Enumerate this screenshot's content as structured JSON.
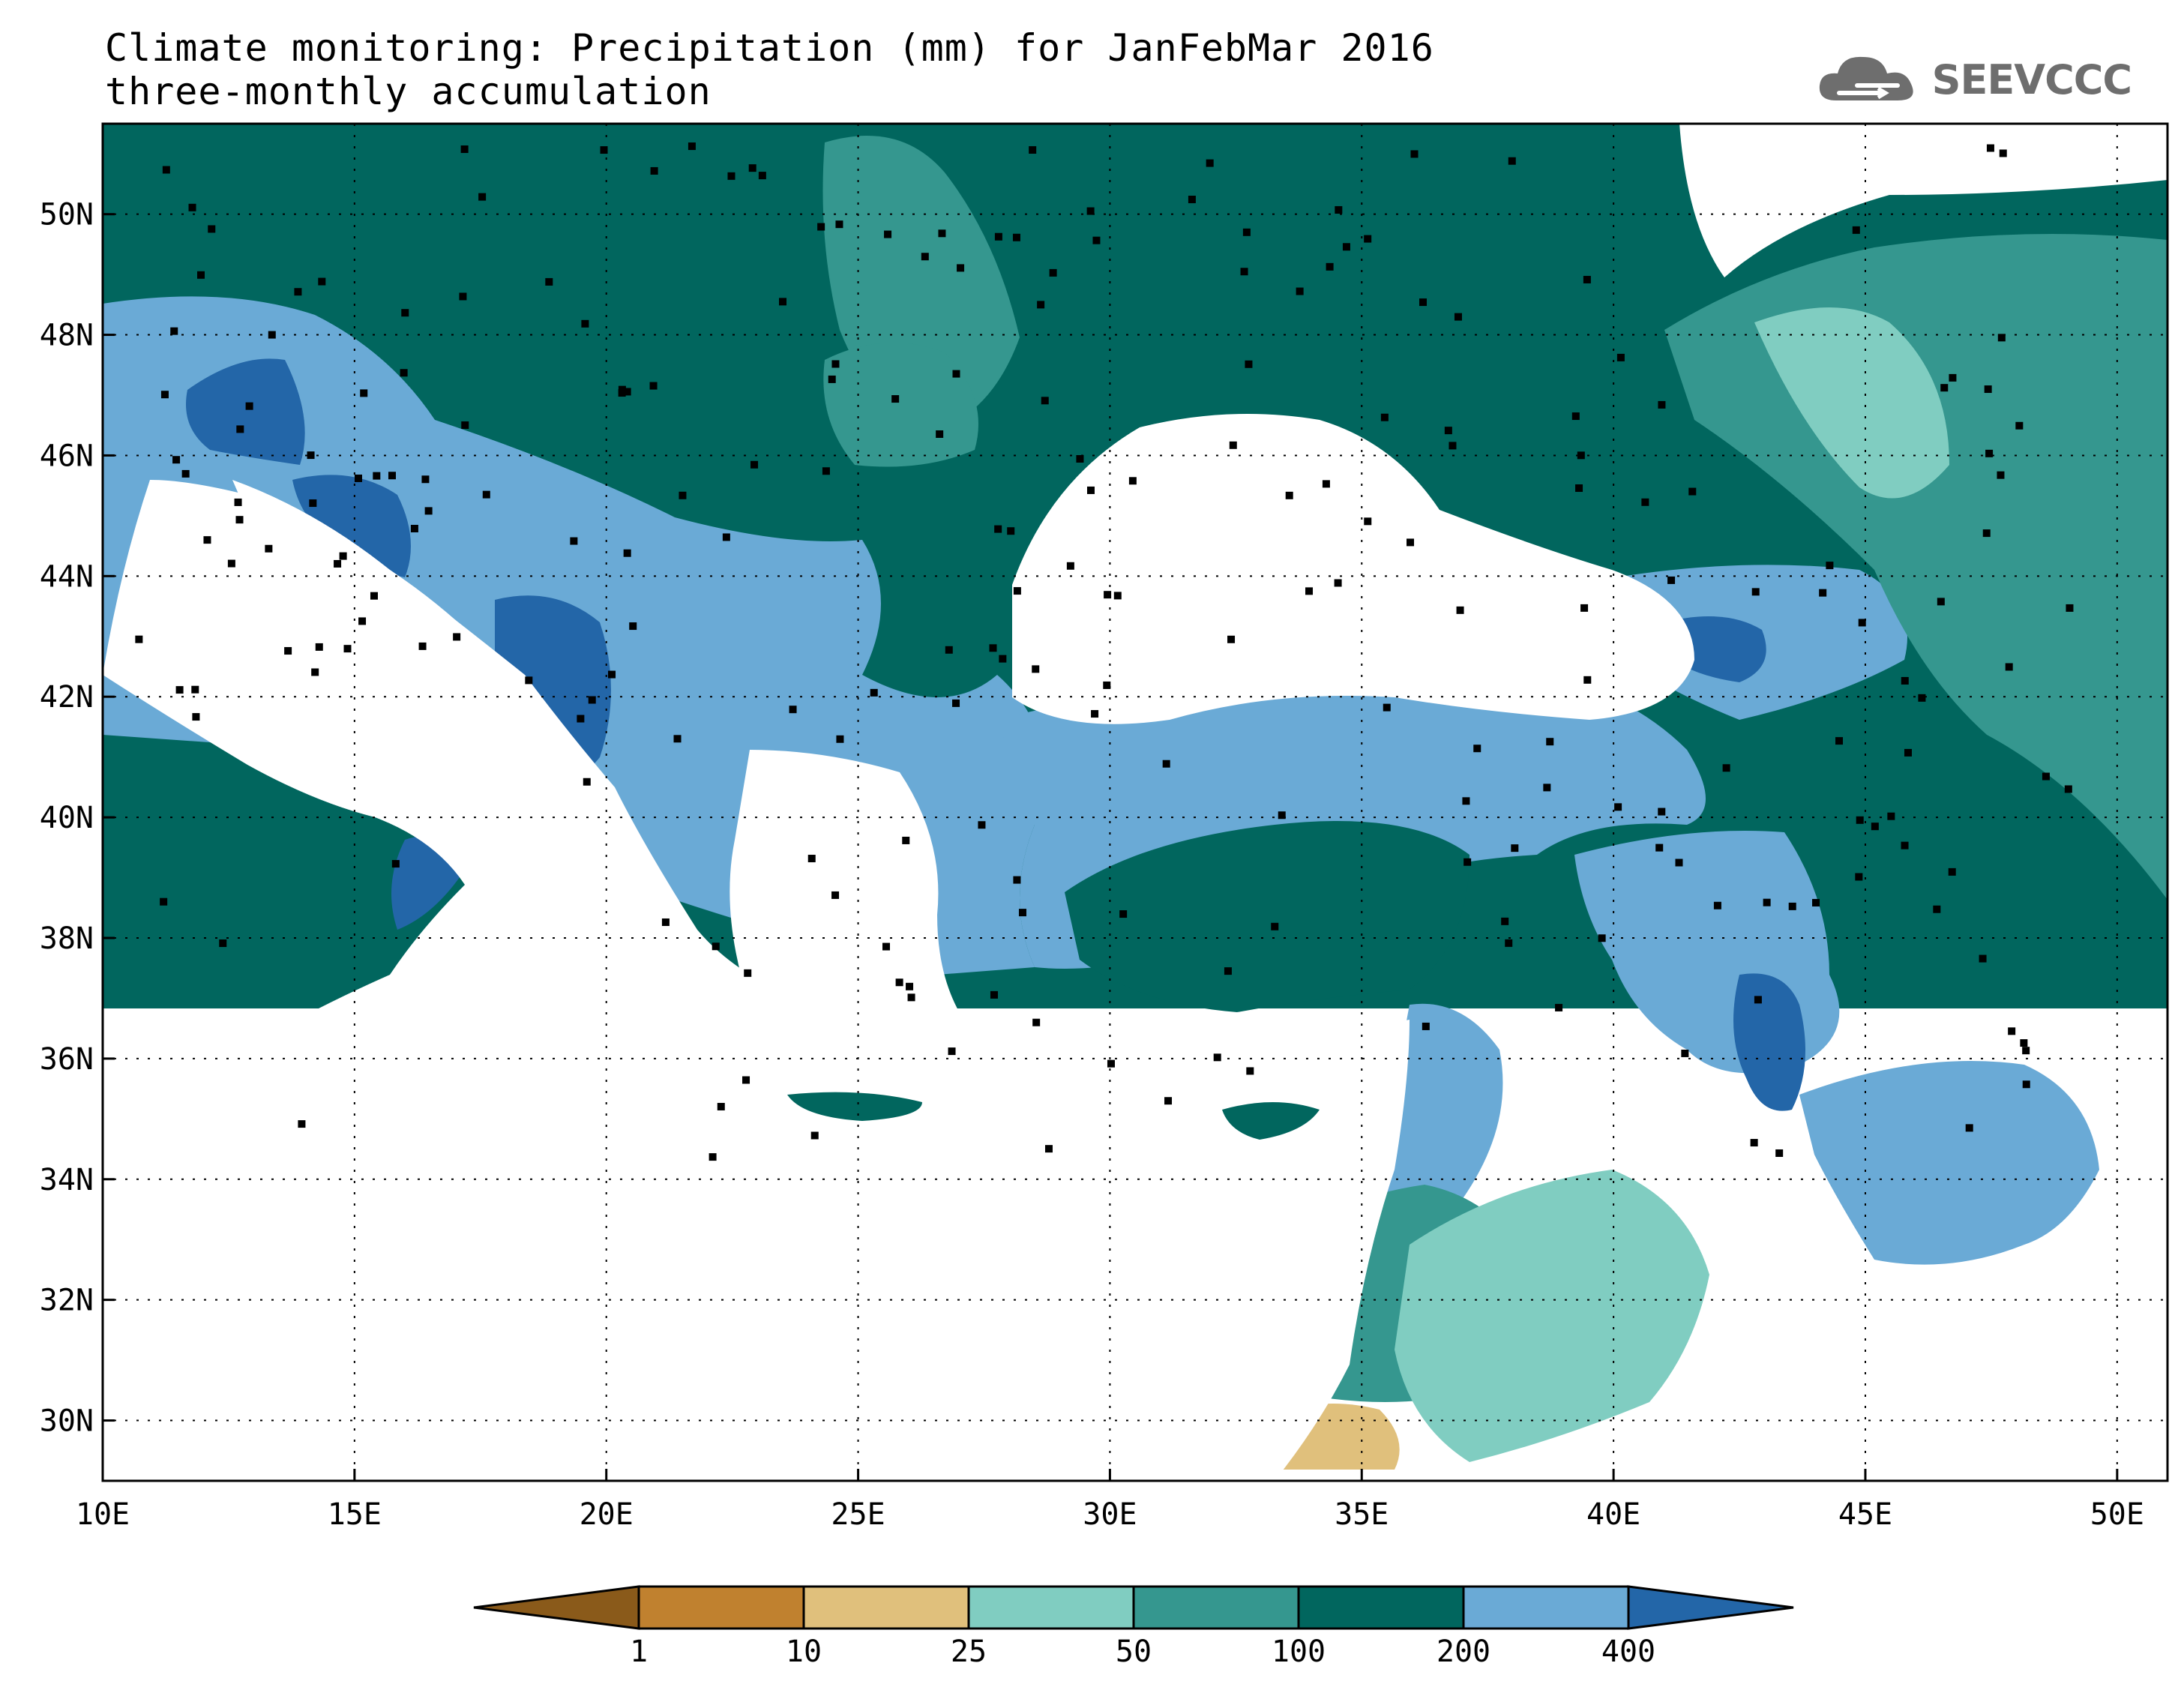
{
  "header": {
    "title_line1": "Climate monitoring: Precipitation (mm) for JanFebMar 2016",
    "title_line2": "three-monthly accumulation"
  },
  "logo": {
    "text": "SEEVCCC",
    "icon": "cloud-icon",
    "color": "#6e6e6e"
  },
  "map": {
    "lon_range": [
      10,
      51
    ],
    "lat_range": [
      29,
      51.5
    ],
    "lon_ticks": [
      "10E",
      "15E",
      "20E",
      "25E",
      "30E",
      "35E",
      "40E",
      "45E",
      "50E"
    ],
    "lat_ticks": [
      "30N",
      "32N",
      "34N",
      "36N",
      "38N",
      "40N",
      "42N",
      "44N",
      "46N",
      "48N",
      "50N"
    ],
    "grid": "dotted"
  },
  "legend": {
    "labels": [
      "1",
      "10",
      "25",
      "50",
      "100",
      "200",
      "400"
    ],
    "colors": [
      "#8a5a1a",
      "#c0812f",
      "#e0c07c",
      "#80cdc1",
      "#35978f",
      "#01665e",
      "#6aaad6",
      "#2366a8"
    ]
  }
}
